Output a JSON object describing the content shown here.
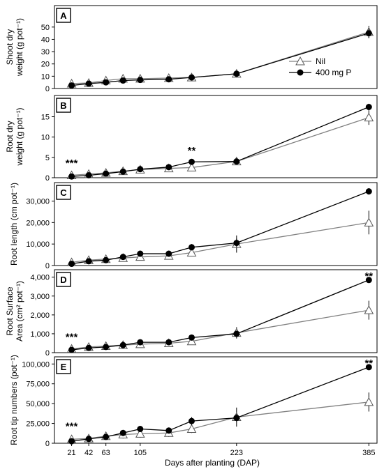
{
  "x_title": "Days after planting (DAP)",
  "x_ticks": [
    21,
    42,
    63,
    105,
    223,
    385
  ],
  "legend": {
    "nil": "Nil",
    "p": "400 mg P"
  },
  "colors": {
    "nil": "#808080",
    "p": "#000000"
  },
  "chart_data": [
    {
      "type": "line",
      "panel": "A",
      "ylabel": [
        "Shoot dry",
        "weight (g pot⁻¹)"
      ],
      "x": [
        21,
        42,
        63,
        84,
        105,
        140,
        168,
        223,
        385
      ],
      "ylim": [
        0,
        55
      ],
      "yticks": [
        0,
        10,
        20,
        30,
        40,
        50
      ],
      "yticklabels": [
        "0",
        "10",
        "20",
        "30",
        "40",
        "50"
      ],
      "series": [
        {
          "name": "Nil",
          "values": [
            4,
            4.5,
            6.5,
            8,
            8,
            8.5,
            9,
            12,
            46
          ],
          "errors": [
            3,
            3,
            3,
            3,
            3,
            3,
            3,
            2,
            5
          ]
        },
        {
          "name": "400 mg P",
          "values": [
            2.5,
            4,
            5,
            6.5,
            7,
            7.5,
            9,
            12,
            45
          ],
          "errors": [
            1.5,
            1.5,
            1.5,
            1.5,
            1.5,
            1.5,
            1.5,
            1.5,
            4
          ]
        }
      ],
      "annotations": []
    },
    {
      "type": "line",
      "panel": "B",
      "ylabel": [
        "Root dry",
        "weight (g pot⁻¹)"
      ],
      "x": [
        21,
        42,
        63,
        84,
        105,
        140,
        168,
        223,
        385
      ],
      "ylim": [
        0,
        18
      ],
      "yticks": [
        0,
        5,
        10,
        15
      ],
      "yticklabels": [
        "0",
        "5",
        "10",
        "15"
      ],
      "series": [
        {
          "name": "Nil",
          "values": [
            0.6,
            0.9,
            1.2,
            1.6,
            2.0,
            2.3,
            2.5,
            4.0,
            14.8
          ],
          "errors": [
            0.8,
            0.8,
            0.8,
            0.8,
            0.8,
            0.8,
            0.8,
            0.6,
            1.8
          ]
        },
        {
          "name": "400 mg P",
          "values": [
            0.3,
            0.6,
            1.0,
            1.5,
            2.1,
            2.6,
            3.9,
            4.0,
            17.4
          ],
          "errors": [
            0.4,
            0.4,
            0.4,
            0.4,
            0.5,
            0.5,
            0.6,
            0.5,
            0.8
          ]
        }
      ],
      "annotations": [
        {
          "text": "***",
          "x": 21
        },
        {
          "text": "**",
          "x": 168
        }
      ]
    },
    {
      "type": "line",
      "panel": "C",
      "ylabel": [
        "Root length (cm pot⁻¹)"
      ],
      "x": [
        21,
        42,
        63,
        84,
        105,
        140,
        168,
        223,
        385
      ],
      "ylim": [
        0,
        36000
      ],
      "yticks": [
        0,
        10000,
        20000,
        30000
      ],
      "yticklabels": [
        "0",
        "10,000",
        "20,000",
        "30,000"
      ],
      "series": [
        {
          "name": "Nil",
          "values": [
            1500,
            2500,
            3000,
            3500,
            4000,
            4500,
            6000,
            10000,
            20000
          ],
          "errors": [
            1500,
            1500,
            1500,
            1500,
            1500,
            1500,
            1500,
            4000,
            5500
          ]
        },
        {
          "name": "400 mg P",
          "values": [
            800,
            2000,
            2500,
            4000,
            5500,
            5500,
            8500,
            10500,
            34500
          ],
          "errors": [
            800,
            800,
            800,
            1000,
            1200,
            1200,
            1500,
            2000,
            1500
          ]
        }
      ],
      "annotations": []
    },
    {
      "type": "line",
      "panel": "D",
      "ylabel": [
        "Root Surface",
        "Area (cm² pot⁻¹)"
      ],
      "x": [
        21,
        42,
        63,
        84,
        105,
        140,
        168,
        223,
        385
      ],
      "ylim": [
        0,
        4100
      ],
      "yticks": [
        0,
        1000,
        2000,
        3000,
        4000
      ],
      "yticklabels": [
        "0",
        "1,000",
        "2,000",
        "3,000",
        "4,000"
      ],
      "series": [
        {
          "name": "Nil",
          "values": [
            200,
            300,
            350,
            400,
            450,
            500,
            600,
            1050,
            2250
          ],
          "errors": [
            150,
            150,
            150,
            150,
            150,
            150,
            150,
            300,
            500
          ]
        },
        {
          "name": "400 mg P",
          "values": [
            150,
            250,
            300,
            400,
            550,
            550,
            800,
            1000,
            3850
          ],
          "errors": [
            100,
            100,
            100,
            100,
            120,
            120,
            150,
            150,
            150
          ]
        }
      ],
      "annotations": [
        {
          "text": "***",
          "x": 21
        },
        {
          "text": "**",
          "x": 385
        }
      ]
    },
    {
      "type": "line",
      "panel": "E",
      "ylabel": [
        "Root tip numbers (pot⁻¹)"
      ],
      "x": [
        21,
        42,
        63,
        84,
        105,
        140,
        168,
        223,
        385
      ],
      "ylim": [
        0,
        102000
      ],
      "yticks": [
        0,
        25000,
        50000,
        75000,
        100000
      ],
      "yticklabels": [
        "0",
        "25,000",
        "50,000",
        "75,000",
        "100,000"
      ],
      "series": [
        {
          "name": "Nil",
          "values": [
            5000,
            6000,
            9000,
            11000,
            12000,
            13000,
            18000,
            33000,
            52000
          ],
          "errors": [
            5000,
            5000,
            5000,
            5000,
            5000,
            5000,
            5000,
            12000,
            12000
          ]
        },
        {
          "name": "400 mg P",
          "values": [
            2500,
            5500,
            8000,
            13000,
            18000,
            16000,
            28000,
            32000,
            96000
          ],
          "errors": [
            2500,
            2500,
            2500,
            3000,
            3500,
            3500,
            5000,
            5000,
            3000
          ]
        }
      ],
      "annotations": [
        {
          "text": "***",
          "x": 21
        },
        {
          "text": "**",
          "x": 385
        }
      ]
    }
  ]
}
